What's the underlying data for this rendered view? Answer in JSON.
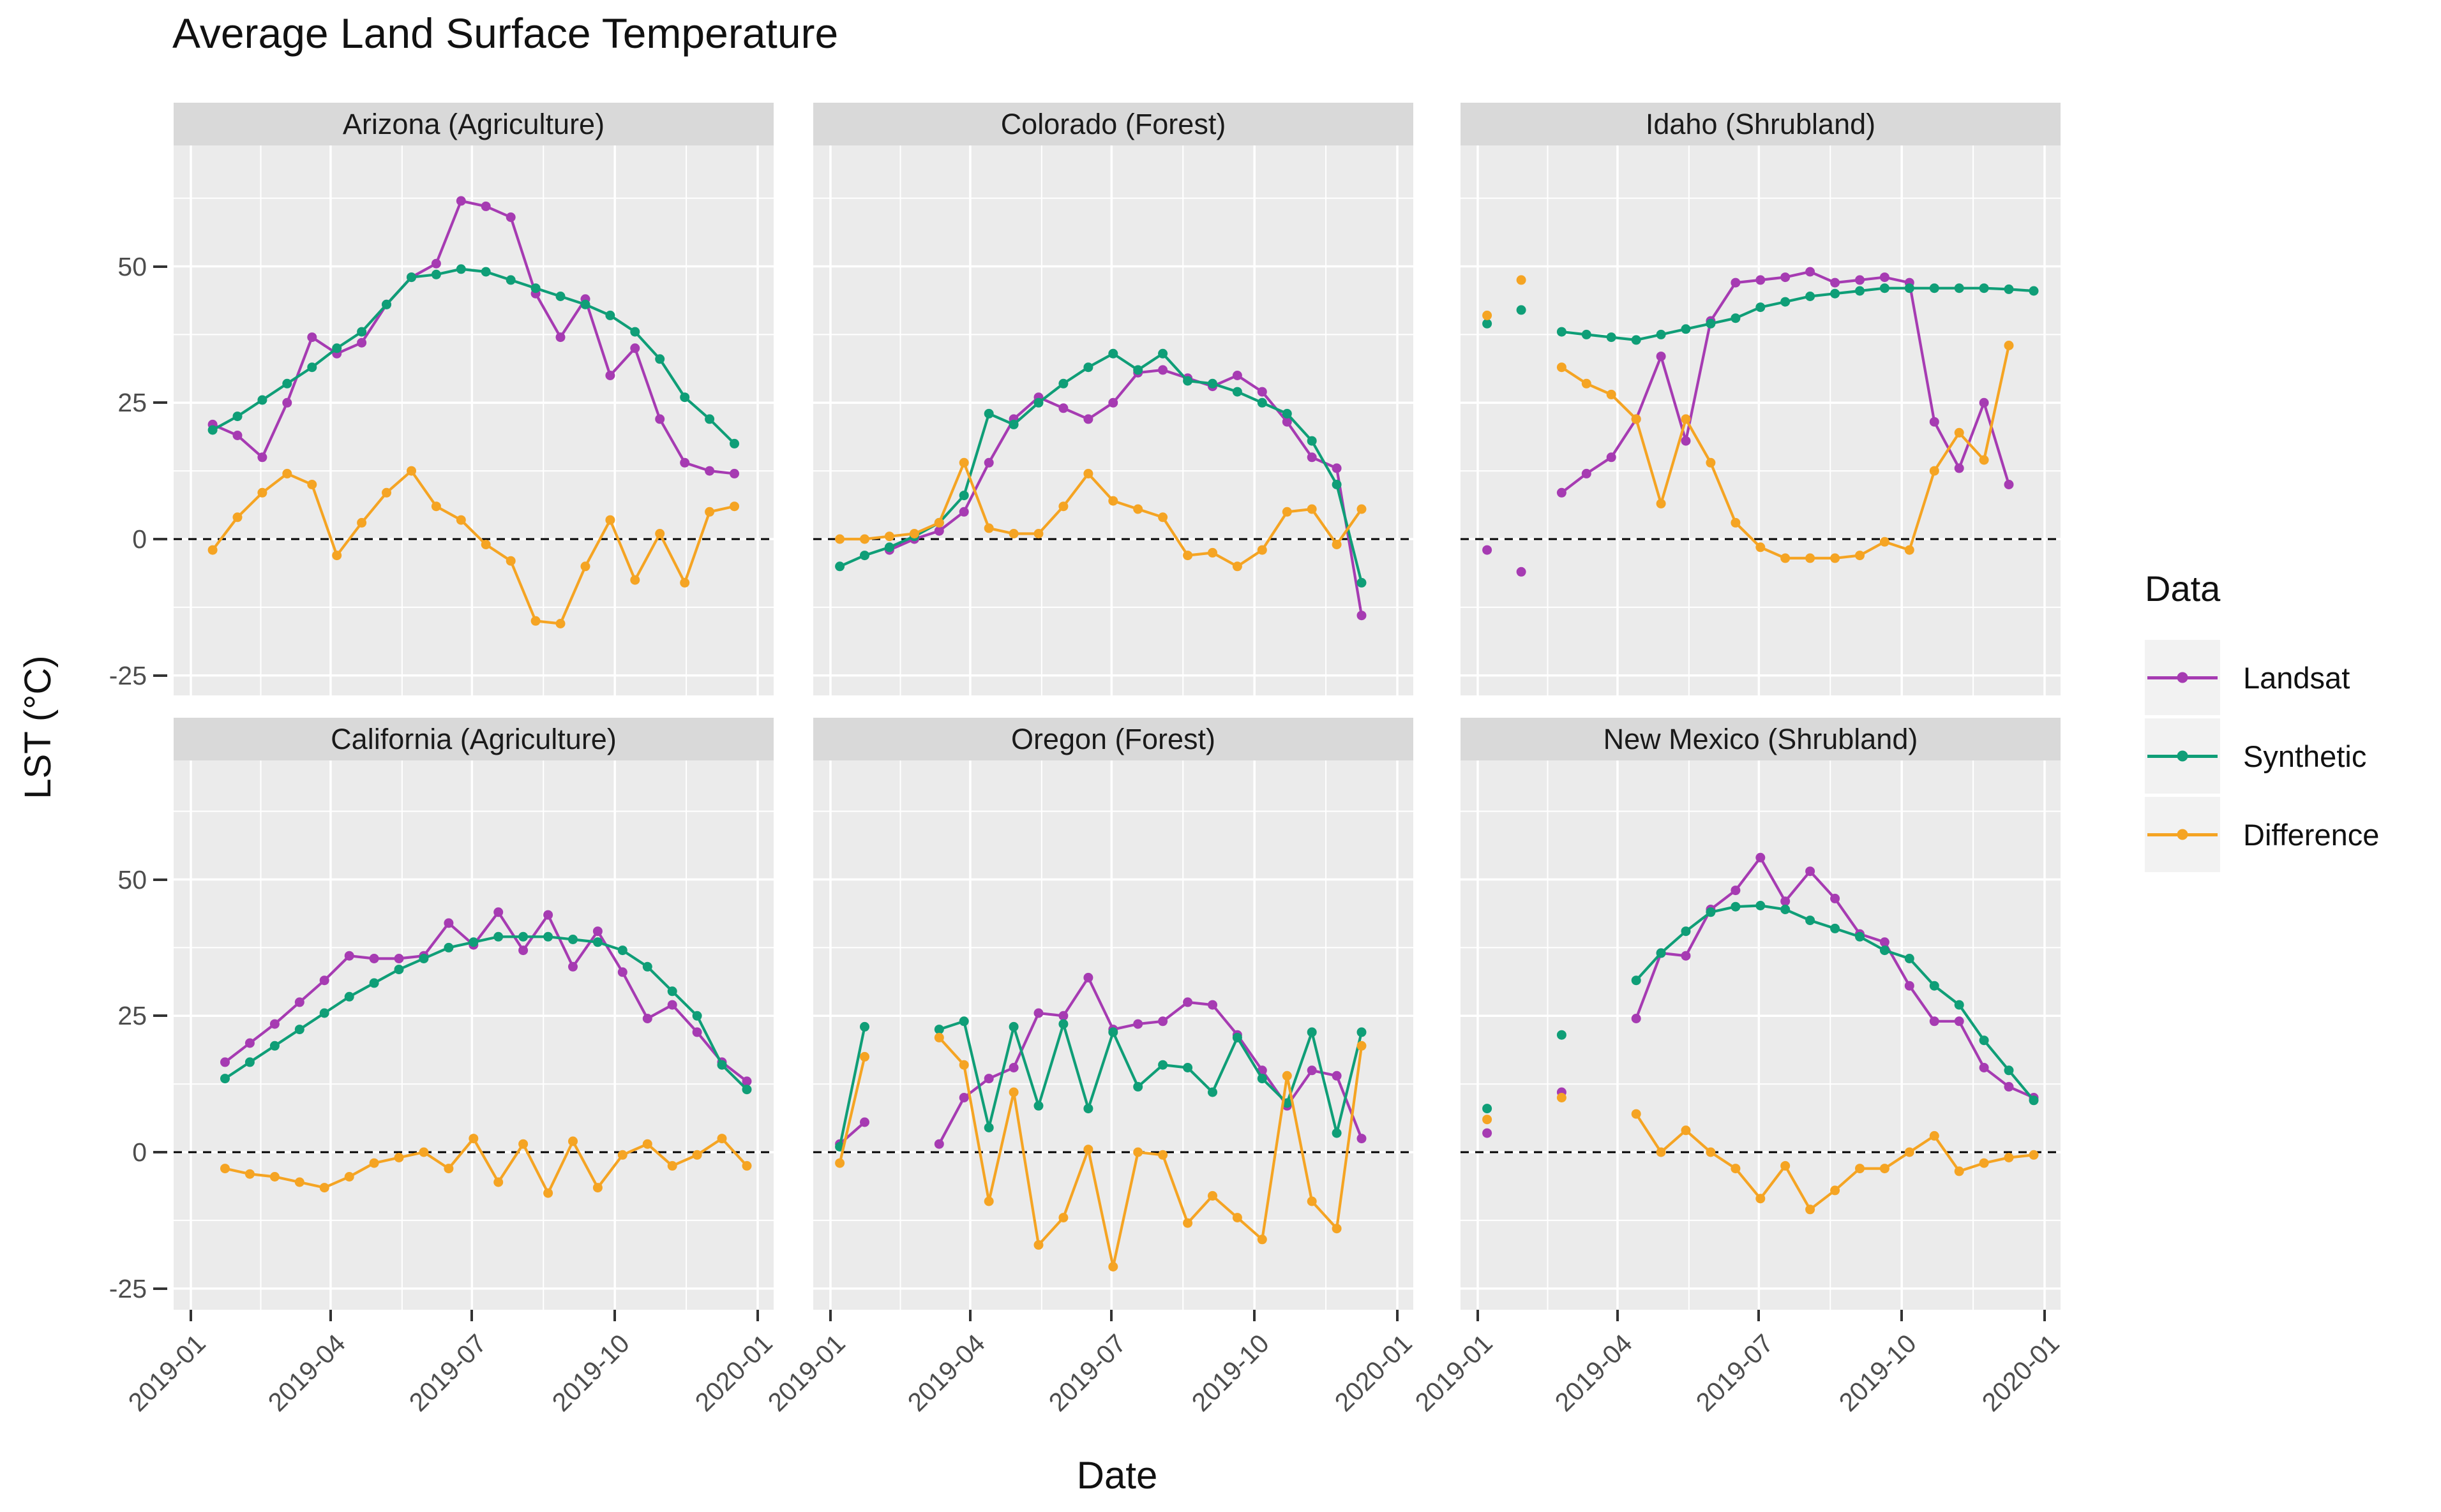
{
  "title": "Average Land Surface Temperature",
  "x_axis": {
    "label": "Date",
    "tick_labels": [
      "2019-01",
      "2019-04",
      "2019-07",
      "2019-10",
      "2020-01"
    ],
    "tick_days": [
      0,
      90,
      181,
      273,
      365
    ],
    "minor_days": [
      45,
      136,
      227,
      319
    ],
    "x_unit": "days since 2019-01-01"
  },
  "y_axis": {
    "label": "LST (°C)",
    "tick_labels": [
      "50",
      "25",
      "0",
      "-25"
    ],
    "tick_values": [
      50,
      25,
      0,
      -25
    ],
    "minor_values": [
      62.5,
      37.5,
      12.5,
      -12.5
    ],
    "range": [
      -29,
      71.5
    ],
    "zero_reference_line": "dashed"
  },
  "legend": {
    "title": "Data",
    "entries": [
      {
        "label": "Landsat",
        "color": "#A63BB2"
      },
      {
        "label": "Synthetic",
        "color": "#0F9E77"
      },
      {
        "label": "Difference",
        "color": "#F5A423"
      }
    ]
  },
  "style": {
    "panel_bg": "#EBEBEB",
    "strip_bg": "#D9D9D9",
    "gridline": "#FFFFFF",
    "zero_line": "#000000",
    "tick_text": "#4D4D4D",
    "text": "#111111",
    "legend_key_bg": "#F2F2F2"
  },
  "chart_data": [
    {
      "type": "line",
      "title": "Arizona (Agriculture)",
      "row": 0,
      "col": 0,
      "series": [
        {
          "name": "Landsat",
          "x": [
            14,
            30,
            46,
            62,
            78,
            94,
            110,
            126,
            142,
            158,
            174,
            190,
            206,
            222,
            238,
            254,
            270,
            286,
            302,
            318,
            334,
            350
          ],
          "y": [
            21,
            19,
            15,
            25,
            37,
            34,
            36,
            43,
            48,
            50.5,
            62,
            61,
            59,
            45,
            37,
            44,
            30,
            35,
            22,
            14,
            12.5,
            12
          ]
        },
        {
          "name": "Synthetic",
          "x": [
            14,
            30,
            46,
            62,
            78,
            94,
            110,
            126,
            142,
            158,
            174,
            190,
            206,
            222,
            238,
            254,
            270,
            286,
            302,
            318,
            334,
            350
          ],
          "y": [
            20,
            22.5,
            25.5,
            28.5,
            31.5,
            35,
            38,
            43,
            48,
            48.5,
            49.5,
            49,
            47.5,
            46,
            44.5,
            43,
            41,
            38,
            33,
            26,
            22,
            17.5
          ]
        },
        {
          "name": "Difference",
          "x": [
            14,
            30,
            46,
            62,
            78,
            94,
            110,
            126,
            142,
            158,
            174,
            190,
            206,
            222,
            238,
            254,
            270,
            286,
            302,
            318,
            334,
            350
          ],
          "y": [
            -2,
            4,
            8.5,
            12,
            10,
            -3,
            3,
            8.5,
            12.5,
            6,
            3.5,
            -1,
            -4,
            -15,
            -15.5,
            -5,
            3.5,
            -7.5,
            1,
            -8,
            5,
            6
          ]
        }
      ]
    },
    {
      "type": "line",
      "title": "Colorado (Forest)",
      "row": 0,
      "col": 1,
      "series": [
        {
          "name": "Landsat",
          "x": [
            38,
            54,
            70,
            86,
            102,
            118,
            134,
            150,
            166,
            182,
            198,
            214,
            230,
            246,
            262,
            278,
            294,
            310,
            326,
            342
          ],
          "y": [
            -2,
            0,
            1.5,
            5,
            14,
            22,
            26,
            24,
            22,
            25,
            30.5,
            31,
            29.5,
            28,
            30,
            27,
            21.5,
            15,
            13,
            -14
          ]
        },
        {
          "name": "Synthetic",
          "x": [
            6,
            22,
            38,
            54,
            70,
            86,
            102,
            118,
            134,
            150,
            166,
            182,
            198,
            214,
            230,
            246,
            262,
            278,
            294,
            310,
            326,
            342
          ],
          "y": [
            -5,
            -3,
            -1.5,
            0.5,
            3,
            8,
            23,
            21,
            25,
            28.5,
            31.5,
            34,
            31,
            34,
            29,
            28.5,
            27,
            25,
            23,
            18,
            10,
            -8
          ]
        },
        {
          "name": "Difference",
          "x": [
            6,
            22,
            38,
            54,
            70,
            86,
            102,
            118,
            134,
            150,
            166,
            182,
            198,
            214,
            230,
            246,
            262,
            278,
            294,
            310,
            326,
            342
          ],
          "y": [
            0,
            0,
            0.5,
            1,
            3,
            14,
            2,
            1,
            1,
            6,
            12,
            7,
            5.5,
            4,
            -3,
            -2.5,
            -5,
            -2,
            5,
            5.5,
            -1,
            5.5
          ]
        }
      ]
    },
    {
      "type": "line",
      "title": "Idaho (Shrubland)",
      "row": 0,
      "col": 2,
      "series": [
        {
          "name": "Landsat",
          "x": [
            6,
            28,
            54,
            70,
            86,
            102,
            118,
            134,
            150,
            166,
            182,
            198,
            214,
            230,
            246,
            262,
            278,
            294,
            310,
            326,
            342
          ],
          "y": [
            -2,
            -6,
            8.5,
            12,
            15,
            22,
            33.5,
            18,
            40,
            47,
            47.5,
            48,
            49,
            47,
            47.5,
            48,
            47,
            21.5,
            13,
            25,
            10
          ]
        },
        {
          "name": "Synthetic",
          "x": [
            6,
            28,
            54,
            70,
            86,
            102,
            118,
            134,
            150,
            166,
            182,
            198,
            214,
            230,
            246,
            262,
            278,
            294,
            310,
            326,
            342,
            358
          ],
          "y": [
            39.5,
            42,
            38,
            37.5,
            37,
            36.5,
            37.5,
            38.5,
            39.5,
            40.5,
            42.5,
            43.5,
            44.5,
            45,
            45.5,
            46,
            46,
            46,
            46,
            46,
            45.8,
            45.5
          ]
        },
        {
          "name": "Difference",
          "x": [
            6,
            28,
            54,
            70,
            86,
            102,
            118,
            134,
            150,
            166,
            182,
            198,
            214,
            230,
            246,
            262,
            278,
            294,
            310,
            326,
            342
          ],
          "y": [
            41,
            47.5,
            31.5,
            28.5,
            26.5,
            22,
            6.5,
            22,
            14,
            3,
            -1.5,
            -3.5,
            -3.5,
            -3.5,
            -3,
            -0.5,
            -2,
            12.5,
            19.5,
            14.5,
            35.5
          ]
        }
      ]
    },
    {
      "type": "line",
      "title": "California (Agriculture)",
      "row": 1,
      "col": 0,
      "series": [
        {
          "name": "Landsat",
          "x": [
            22,
            38,
            54,
            70,
            86,
            102,
            118,
            134,
            150,
            166,
            182,
            198,
            214,
            230,
            246,
            262,
            278,
            294,
            310,
            326,
            342,
            358
          ],
          "y": [
            16.5,
            20,
            23.5,
            27.5,
            31.5,
            36,
            35.5,
            35.5,
            36,
            42,
            38,
            44,
            37,
            43.5,
            34,
            40.5,
            33,
            24.5,
            27,
            22,
            16.5,
            13
          ]
        },
        {
          "name": "Synthetic",
          "x": [
            22,
            38,
            54,
            70,
            86,
            102,
            118,
            134,
            150,
            166,
            182,
            198,
            214,
            230,
            246,
            262,
            278,
            294,
            310,
            326,
            342,
            358
          ],
          "y": [
            13.5,
            16.5,
            19.5,
            22.5,
            25.5,
            28.5,
            31,
            33.5,
            35.5,
            37.5,
            38.5,
            39.5,
            39.5,
            39.5,
            39,
            38.5,
            37,
            34,
            29.5,
            25,
            16,
            11.5
          ]
        },
        {
          "name": "Difference",
          "x": [
            22,
            38,
            54,
            70,
            86,
            102,
            118,
            134,
            150,
            166,
            182,
            198,
            214,
            230,
            246,
            262,
            278,
            294,
            310,
            326,
            342,
            358
          ],
          "y": [
            -3,
            -4,
            -4.5,
            -5.5,
            -6.5,
            -4.5,
            -2,
            -1,
            0,
            -3,
            2.5,
            -5.5,
            1.5,
            -7.5,
            2,
            -6.5,
            -0.5,
            1.5,
            -2.5,
            -0.5,
            2.5,
            -2.5
          ]
        }
      ]
    },
    {
      "type": "line",
      "title": "Oregon (Forest)",
      "row": 1,
      "col": 1,
      "series": [
        {
          "name": "Landsat",
          "x": [
            6,
            22,
            70,
            86,
            102,
            118,
            134,
            150,
            166,
            182,
            198,
            214,
            230,
            246,
            262,
            278,
            294,
            310,
            326,
            342
          ],
          "y": [
            1.5,
            5.5,
            1.5,
            10,
            13.5,
            15.5,
            25.5,
            25,
            32,
            22.5,
            23.5,
            24,
            27.5,
            27,
            21.5,
            15,
            8.5,
            15,
            14,
            2.5
          ]
        },
        {
          "name": "Synthetic",
          "x": [
            6,
            22,
            70,
            86,
            102,
            118,
            134,
            150,
            166,
            182,
            198,
            214,
            230,
            246,
            262,
            278,
            294,
            310,
            326,
            342
          ],
          "y": [
            1,
            23,
            22.5,
            24,
            4.5,
            23,
            8.5,
            23.5,
            8,
            22,
            12,
            16,
            15.5,
            11,
            21,
            13.5,
            9,
            22,
            3.5,
            22
          ]
        },
        {
          "name": "Difference",
          "x": [
            6,
            22,
            70,
            86,
            102,
            118,
            134,
            150,
            166,
            182,
            198,
            214,
            230,
            246,
            262,
            278,
            294,
            310,
            326,
            342
          ],
          "y": [
            -2,
            17.5,
            21,
            16,
            -9,
            11,
            -17,
            -12,
            0.5,
            -21,
            0,
            -0.5,
            -13,
            -8,
            -12,
            -16,
            14,
            -9,
            -14,
            19.5
          ]
        }
      ]
    },
    {
      "type": "line",
      "title": "New Mexico (Shrubland)",
      "row": 1,
      "col": 2,
      "series": [
        {
          "name": "Landsat",
          "x": [
            6,
            54,
            102,
            118,
            134,
            150,
            166,
            182,
            198,
            214,
            230,
            246,
            262,
            278,
            294,
            310,
            326,
            342,
            358
          ],
          "y": [
            3.5,
            11,
            24.5,
            36.5,
            36,
            44.5,
            48,
            54,
            46,
            51.5,
            46.5,
            40,
            38.5,
            30.5,
            24,
            24,
            15.5,
            12,
            10
          ]
        },
        {
          "name": "Synthetic",
          "x": [
            6,
            54,
            102,
            118,
            134,
            150,
            166,
            182,
            198,
            214,
            230,
            246,
            262,
            278,
            294,
            310,
            326,
            342,
            358
          ],
          "y": [
            8,
            21.5,
            31.5,
            36.5,
            40.5,
            44,
            45,
            45.2,
            44.5,
            42.5,
            41,
            39.5,
            37,
            35.5,
            30.5,
            27,
            20.5,
            15,
            9.5
          ]
        },
        {
          "name": "Difference",
          "x": [
            6,
            54,
            102,
            118,
            134,
            150,
            166,
            182,
            198,
            214,
            230,
            246,
            262,
            278,
            294,
            310,
            326,
            342,
            358
          ],
          "y": [
            6,
            10,
            7,
            0,
            4,
            0,
            -3,
            -8.5,
            -2.5,
            -10.5,
            -7,
            -3,
            -3,
            0,
            3,
            -3.5,
            -2,
            -1,
            -0.5
          ]
        }
      ]
    }
  ]
}
